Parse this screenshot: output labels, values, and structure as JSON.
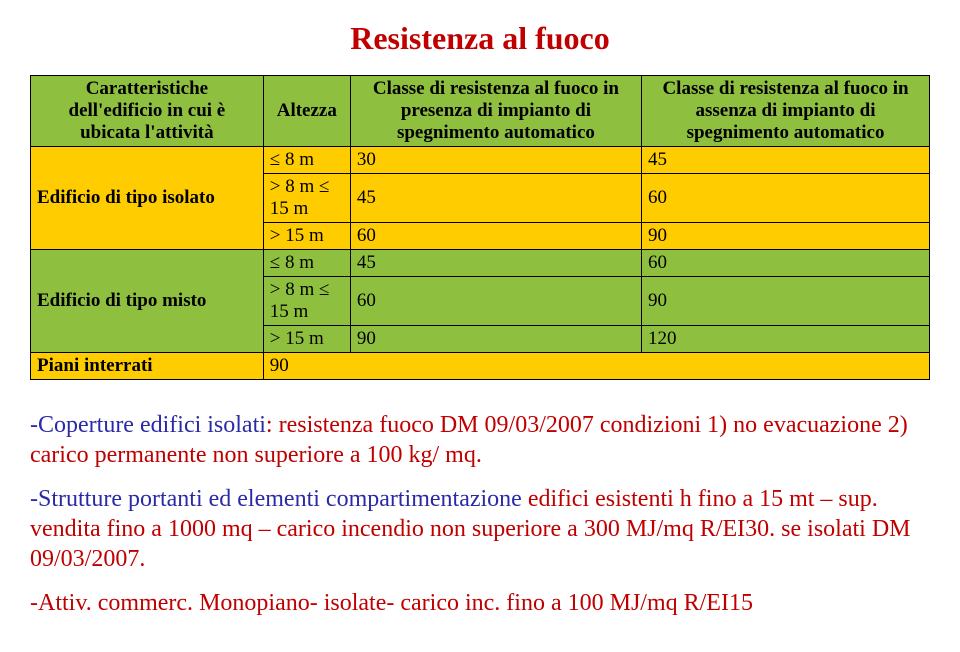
{
  "title": {
    "text": "Resistenza al fuoco",
    "color": "#c00000"
  },
  "table": {
    "header_bg": "#8fbf3f",
    "row_bg_a": "#ffcc00",
    "row_bg_b": "#8fbf3f",
    "columns": [
      "Caratteristiche dell'edificio in cui è ubicata l'attività",
      "Altezza",
      "Classe di resistenza al fuoco in presenza di impianto di spegnimento automatico",
      "Classe di resistenza al fuoco in assenza di impianto di spegnimento automatico"
    ],
    "groups": [
      {
        "label": "Edificio di tipo isolato",
        "bg": "#ffcc00",
        "rows": [
          {
            "alt": "≤ 8 m",
            "c1": "30",
            "c2": "45"
          },
          {
            "alt": "> 8 m ≤ 15 m",
            "c1": "45",
            "c2": "60"
          },
          {
            "alt": "> 15 m",
            "c1": "60",
            "c2": "90"
          }
        ]
      },
      {
        "label": "Edificio di tipo misto",
        "bg": "#8fbf3f",
        "rows": [
          {
            "alt": "≤ 8 m",
            "c1": "45",
            "c2": "60"
          },
          {
            "alt": "> 8 m ≤ 15 m",
            "c1": "60",
            "c2": "90"
          },
          {
            "alt": "> 15 m",
            "c1": "90",
            "c2": "120"
          }
        ]
      }
    ],
    "footer": {
      "label": "Piani interrati",
      "bg": "#ffcc00",
      "value": "90"
    }
  },
  "notes": {
    "n1_a": "-Coperture edifici isolati",
    "n1_b": ": resistenza fuoco DM 09/03/2007 condizioni 1) no evacuazione 2) carico permanente non superiore a 100 kg/ mq.",
    "n2_a": "-Strutture portanti ed elementi compartimentazione",
    "n2_b": " edifici esistenti  h fino a 15 mt – sup. vendita fino a 1000 mq – carico incendio non superiore a 300 MJ/mq   R/EI30. se isolati DM 09/03/2007.",
    "n3_a": "-Attiv. commerc.",
    "n3_b": " Monopiano- isolate- carico inc.  fino a  100 MJ/mq R/EI15",
    "color1": "#2a2aa8",
    "color2": "#c00000"
  }
}
